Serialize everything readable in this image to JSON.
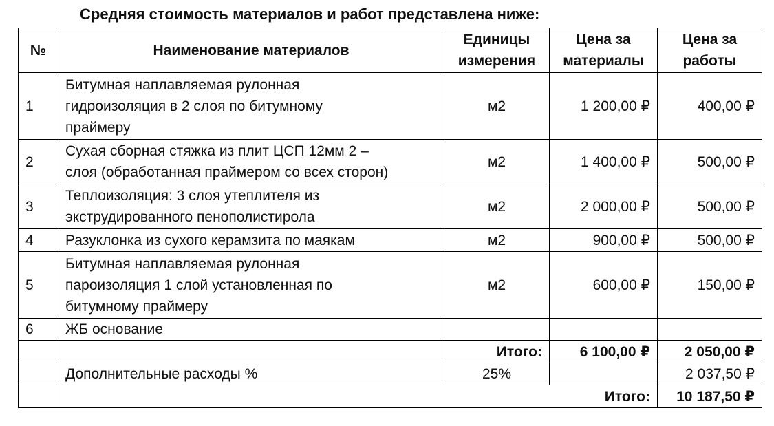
{
  "heading": "Средняя стоимость материалов и работ представлена ниже:",
  "columns": {
    "num": "№",
    "name": "Наименование материалов",
    "unit_l1": "Единицы",
    "unit_l2": "измерения",
    "mat_l1": "Цена за",
    "mat_l2": "материалы",
    "work_l1": "Цена за",
    "work_l2": "работы"
  },
  "rows": [
    {
      "num": "1",
      "name_lines": [
        "Битумная наплавляемая рулонная",
        "гидроизоляция в 2 слоя по битумному",
        "праймеру"
      ],
      "unit": "м2",
      "materials": "1 200,00 ₽",
      "work": "400,00 ₽"
    },
    {
      "num": "2",
      "name_lines": [
        "Сухая сборная стяжка из плит ЦСП 12мм 2 –",
        "слоя (обработанная праймером со всех сторон)"
      ],
      "unit": "м2",
      "materials": "1 400,00 ₽",
      "work": "500,00 ₽"
    },
    {
      "num": "3",
      "name_lines": [
        "Теплоизоляция: 3 слоя утеплителя из",
        "экструдированного пенополистирола"
      ],
      "unit": "м2",
      "materials": "2 000,00 ₽",
      "work": "500,00 ₽"
    },
    {
      "num": "4",
      "name_lines": [
        "Разуклонка из сухого керамзита по маякам"
      ],
      "unit": "м2",
      "materials": "900,00 ₽",
      "work": "500,00 ₽"
    },
    {
      "num": "5",
      "name_lines": [
        "Битумная наплавляемая рулонная",
        "пароизоляция 1 слой установленная по",
        "битумному праймеру"
      ],
      "unit": "м2",
      "materials": "600,00 ₽",
      "work": "150,00 ₽"
    },
    {
      "num": "6",
      "name_lines": [
        "ЖБ основание"
      ],
      "unit": "",
      "materials": "",
      "work": ""
    }
  ],
  "subtotal": {
    "label": "Итого:",
    "materials": "6 100,00 ₽",
    "work": "2 050,00 ₽"
  },
  "extra": {
    "label": "Дополнительные расходы %",
    "percent": "25%",
    "work": "2 037,50 ₽"
  },
  "grand_total": {
    "label": "Итого:",
    "value": "10 187,50 ₽"
  }
}
